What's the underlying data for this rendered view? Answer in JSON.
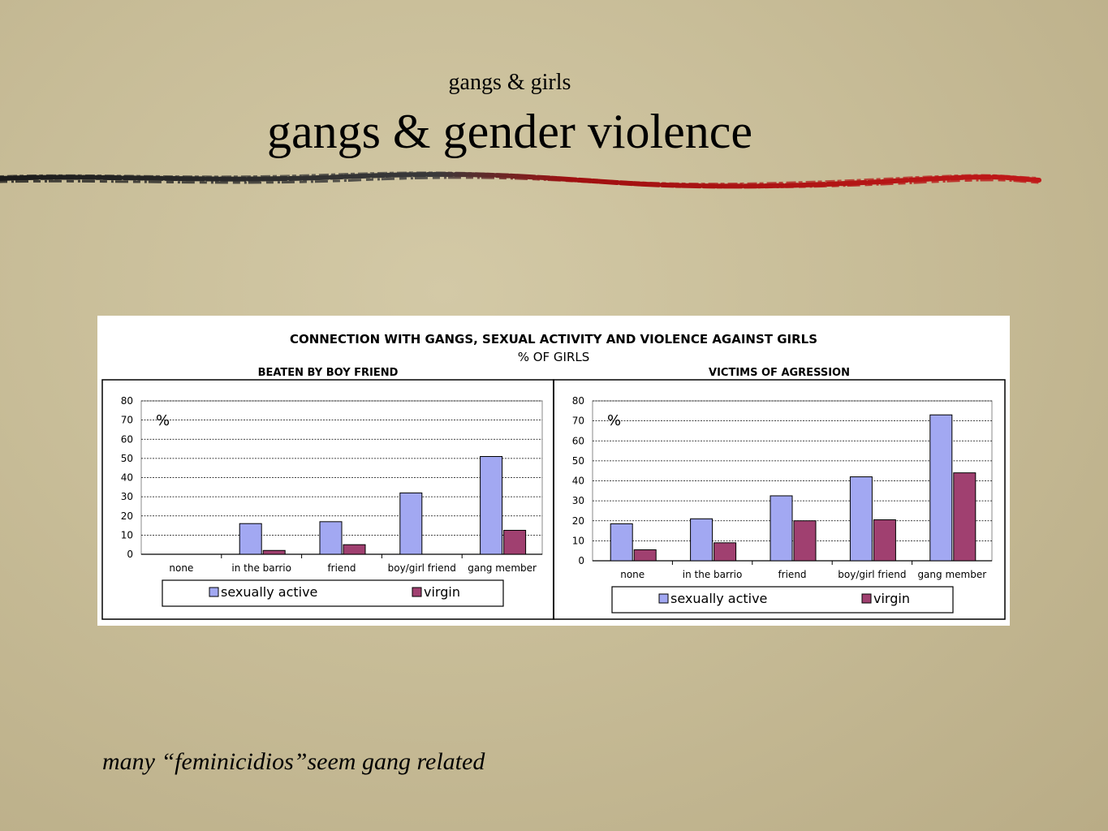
{
  "slide": {
    "subtitle": "gangs & girls",
    "title": "gangs & gender violence",
    "caption": "many “feminicidios”seem gang related"
  },
  "figure": {
    "title": "CONNECTION WITH GANGS, SEXUAL ACTIVITY AND VIOLENCE AGAINST GIRLS",
    "subtitle": "% OF GIRLS"
  },
  "colors": {
    "sexually_active": "#a2a8f2",
    "virgin": "#a04070"
  },
  "chart_data": [
    {
      "type": "bar",
      "title": "BEATEN BY BOY FRIEND",
      "ylabel": "%",
      "ylim": [
        0,
        80
      ],
      "yticks": [
        0,
        10,
        20,
        30,
        40,
        50,
        60,
        70,
        80
      ],
      "grid": true,
      "legend": "bottom",
      "categories": [
        "none",
        "in the barrio",
        "friend",
        "boy/girl friend",
        "gang member"
      ],
      "series": [
        {
          "name": "sexually active",
          "values": [
            0,
            16,
            17,
            32,
            51
          ]
        },
        {
          "name": "virgin",
          "values": [
            0,
            2,
            5,
            0,
            12.5
          ]
        }
      ]
    },
    {
      "type": "bar",
      "title": "VICTIMS OF AGRESSION",
      "ylabel": "%",
      "ylim": [
        0,
        80
      ],
      "yticks": [
        0,
        10,
        20,
        30,
        40,
        50,
        60,
        70,
        80
      ],
      "grid": true,
      "legend": "bottom",
      "categories": [
        "none",
        "in the barrio",
        "friend",
        "boy/girl friend",
        "gang member"
      ],
      "series": [
        {
          "name": "sexually active",
          "values": [
            18.5,
            21,
            32.5,
            42,
            73
          ]
        },
        {
          "name": "virgin",
          "values": [
            5.5,
            9,
            20,
            20.5,
            44
          ]
        }
      ]
    }
  ]
}
